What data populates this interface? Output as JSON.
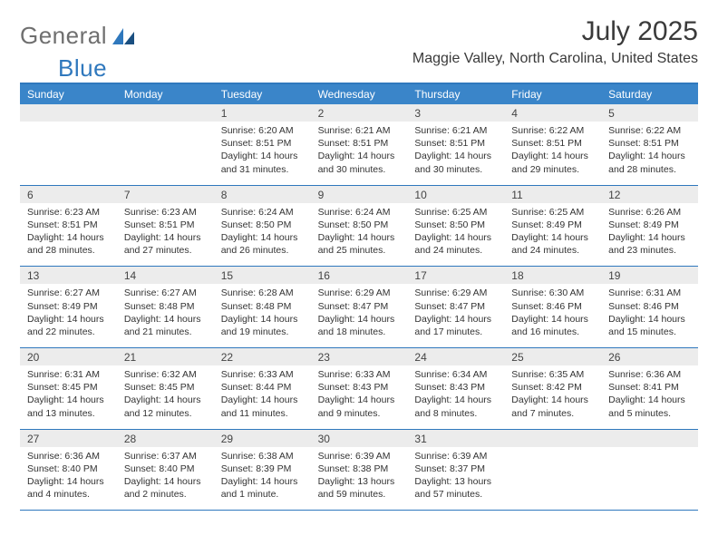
{
  "brand": {
    "general": "General",
    "blue": "Blue"
  },
  "title": "July 2025",
  "location": "Maggie Valley, North Carolina, United States",
  "colors": {
    "header_bar": "#3a85c9",
    "rule": "#2f78bd",
    "band": "#ececec",
    "logo_gray": "#6f6f6f",
    "logo_blue": "#2f78bd"
  },
  "days_of_week": [
    "Sunday",
    "Monday",
    "Tuesday",
    "Wednesday",
    "Thursday",
    "Friday",
    "Saturday"
  ],
  "weeks": [
    [
      {
        "n": "",
        "sunrise": "",
        "sunset": "",
        "daylight": ""
      },
      {
        "n": "",
        "sunrise": "",
        "sunset": "",
        "daylight": ""
      },
      {
        "n": "1",
        "sunrise": "Sunrise: 6:20 AM",
        "sunset": "Sunset: 8:51 PM",
        "daylight": "Daylight: 14 hours and 31 minutes."
      },
      {
        "n": "2",
        "sunrise": "Sunrise: 6:21 AM",
        "sunset": "Sunset: 8:51 PM",
        "daylight": "Daylight: 14 hours and 30 minutes."
      },
      {
        "n": "3",
        "sunrise": "Sunrise: 6:21 AM",
        "sunset": "Sunset: 8:51 PM",
        "daylight": "Daylight: 14 hours and 30 minutes."
      },
      {
        "n": "4",
        "sunrise": "Sunrise: 6:22 AM",
        "sunset": "Sunset: 8:51 PM",
        "daylight": "Daylight: 14 hours and 29 minutes."
      },
      {
        "n": "5",
        "sunrise": "Sunrise: 6:22 AM",
        "sunset": "Sunset: 8:51 PM",
        "daylight": "Daylight: 14 hours and 28 minutes."
      }
    ],
    [
      {
        "n": "6",
        "sunrise": "Sunrise: 6:23 AM",
        "sunset": "Sunset: 8:51 PM",
        "daylight": "Daylight: 14 hours and 28 minutes."
      },
      {
        "n": "7",
        "sunrise": "Sunrise: 6:23 AM",
        "sunset": "Sunset: 8:51 PM",
        "daylight": "Daylight: 14 hours and 27 minutes."
      },
      {
        "n": "8",
        "sunrise": "Sunrise: 6:24 AM",
        "sunset": "Sunset: 8:50 PM",
        "daylight": "Daylight: 14 hours and 26 minutes."
      },
      {
        "n": "9",
        "sunrise": "Sunrise: 6:24 AM",
        "sunset": "Sunset: 8:50 PM",
        "daylight": "Daylight: 14 hours and 25 minutes."
      },
      {
        "n": "10",
        "sunrise": "Sunrise: 6:25 AM",
        "sunset": "Sunset: 8:50 PM",
        "daylight": "Daylight: 14 hours and 24 minutes."
      },
      {
        "n": "11",
        "sunrise": "Sunrise: 6:25 AM",
        "sunset": "Sunset: 8:49 PM",
        "daylight": "Daylight: 14 hours and 24 minutes."
      },
      {
        "n": "12",
        "sunrise": "Sunrise: 6:26 AM",
        "sunset": "Sunset: 8:49 PM",
        "daylight": "Daylight: 14 hours and 23 minutes."
      }
    ],
    [
      {
        "n": "13",
        "sunrise": "Sunrise: 6:27 AM",
        "sunset": "Sunset: 8:49 PM",
        "daylight": "Daylight: 14 hours and 22 minutes."
      },
      {
        "n": "14",
        "sunrise": "Sunrise: 6:27 AM",
        "sunset": "Sunset: 8:48 PM",
        "daylight": "Daylight: 14 hours and 21 minutes."
      },
      {
        "n": "15",
        "sunrise": "Sunrise: 6:28 AM",
        "sunset": "Sunset: 8:48 PM",
        "daylight": "Daylight: 14 hours and 19 minutes."
      },
      {
        "n": "16",
        "sunrise": "Sunrise: 6:29 AM",
        "sunset": "Sunset: 8:47 PM",
        "daylight": "Daylight: 14 hours and 18 minutes."
      },
      {
        "n": "17",
        "sunrise": "Sunrise: 6:29 AM",
        "sunset": "Sunset: 8:47 PM",
        "daylight": "Daylight: 14 hours and 17 minutes."
      },
      {
        "n": "18",
        "sunrise": "Sunrise: 6:30 AM",
        "sunset": "Sunset: 8:46 PM",
        "daylight": "Daylight: 14 hours and 16 minutes."
      },
      {
        "n": "19",
        "sunrise": "Sunrise: 6:31 AM",
        "sunset": "Sunset: 8:46 PM",
        "daylight": "Daylight: 14 hours and 15 minutes."
      }
    ],
    [
      {
        "n": "20",
        "sunrise": "Sunrise: 6:31 AM",
        "sunset": "Sunset: 8:45 PM",
        "daylight": "Daylight: 14 hours and 13 minutes."
      },
      {
        "n": "21",
        "sunrise": "Sunrise: 6:32 AM",
        "sunset": "Sunset: 8:45 PM",
        "daylight": "Daylight: 14 hours and 12 minutes."
      },
      {
        "n": "22",
        "sunrise": "Sunrise: 6:33 AM",
        "sunset": "Sunset: 8:44 PM",
        "daylight": "Daylight: 14 hours and 11 minutes."
      },
      {
        "n": "23",
        "sunrise": "Sunrise: 6:33 AM",
        "sunset": "Sunset: 8:43 PM",
        "daylight": "Daylight: 14 hours and 9 minutes."
      },
      {
        "n": "24",
        "sunrise": "Sunrise: 6:34 AM",
        "sunset": "Sunset: 8:43 PM",
        "daylight": "Daylight: 14 hours and 8 minutes."
      },
      {
        "n": "25",
        "sunrise": "Sunrise: 6:35 AM",
        "sunset": "Sunset: 8:42 PM",
        "daylight": "Daylight: 14 hours and 7 minutes."
      },
      {
        "n": "26",
        "sunrise": "Sunrise: 6:36 AM",
        "sunset": "Sunset: 8:41 PM",
        "daylight": "Daylight: 14 hours and 5 minutes."
      }
    ],
    [
      {
        "n": "27",
        "sunrise": "Sunrise: 6:36 AM",
        "sunset": "Sunset: 8:40 PM",
        "daylight": "Daylight: 14 hours and 4 minutes."
      },
      {
        "n": "28",
        "sunrise": "Sunrise: 6:37 AM",
        "sunset": "Sunset: 8:40 PM",
        "daylight": "Daylight: 14 hours and 2 minutes."
      },
      {
        "n": "29",
        "sunrise": "Sunrise: 6:38 AM",
        "sunset": "Sunset: 8:39 PM",
        "daylight": "Daylight: 14 hours and 1 minute."
      },
      {
        "n": "30",
        "sunrise": "Sunrise: 6:39 AM",
        "sunset": "Sunset: 8:38 PM",
        "daylight": "Daylight: 13 hours and 59 minutes."
      },
      {
        "n": "31",
        "sunrise": "Sunrise: 6:39 AM",
        "sunset": "Sunset: 8:37 PM",
        "daylight": "Daylight: 13 hours and 57 minutes."
      },
      {
        "n": "",
        "sunrise": "",
        "sunset": "",
        "daylight": ""
      },
      {
        "n": "",
        "sunrise": "",
        "sunset": "",
        "daylight": ""
      }
    ]
  ]
}
